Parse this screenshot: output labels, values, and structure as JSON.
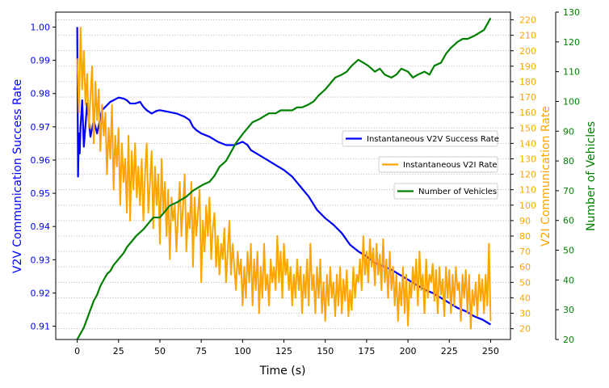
{
  "chart_data": {
    "type": "line",
    "xlabel": "Time (s)",
    "ylabel_left": "V2V Communication Success Rate",
    "ylabel_right1": "V2I Communication Rate",
    "ylabel_right2": "Number of Vehicles",
    "xlim": [
      -13,
      262
    ],
    "x_ticks": [
      0,
      25,
      50,
      75,
      100,
      125,
      150,
      175,
      200,
      225,
      250
    ],
    "y_left": {
      "range": [
        0.906,
        1.0045
      ],
      "ticks": [
        0.91,
        0.92,
        0.93,
        0.94,
        0.95,
        0.96,
        0.97,
        0.98,
        0.99,
        1.0
      ],
      "color": "#0000ff"
    },
    "y_right1": {
      "range": [
        13,
        225
      ],
      "ticks": [
        20,
        30,
        40,
        50,
        60,
        70,
        80,
        90,
        100,
        110,
        120,
        130,
        140,
        150,
        160,
        170,
        180,
        190,
        200,
        210,
        220
      ],
      "color": "#ffa500"
    },
    "y_right2": {
      "range": [
        20,
        130
      ],
      "ticks": [
        20,
        30,
        40,
        50,
        60,
        70,
        80,
        90,
        100,
        110,
        120,
        130
      ],
      "color": "#008000"
    },
    "grid": "horizontal dotted",
    "series": [
      {
        "name": "Instantaneous V2V Success Rate",
        "axis": "left",
        "color": "#0000ff",
        "x": [
          0,
          0.5,
          1,
          1.5,
          2,
          3,
          4,
          6,
          8,
          10,
          12,
          15,
          18,
          20,
          22,
          25,
          28,
          30,
          32,
          35,
          38,
          40,
          42,
          45,
          48,
          50,
          55,
          60,
          65,
          68,
          70,
          72,
          75,
          80,
          85,
          90,
          95,
          100,
          103,
          105,
          110,
          115,
          120,
          125,
          130,
          135,
          140,
          145,
          150,
          155,
          160,
          165,
          170,
          175,
          180,
          185,
          190,
          195,
          200,
          205,
          210,
          215,
          220,
          225,
          230,
          235,
          240,
          245,
          250
        ],
        "values": [
          1.0,
          0.955,
          0.968,
          0.962,
          0.97,
          0.978,
          0.964,
          0.977,
          0.967,
          0.972,
          0.968,
          0.975,
          0.9765,
          0.9775,
          0.978,
          0.9788,
          0.9785,
          0.978,
          0.977,
          0.977,
          0.9775,
          0.976,
          0.975,
          0.974,
          0.9748,
          0.975,
          0.9745,
          0.974,
          0.973,
          0.972,
          0.97,
          0.969,
          0.968,
          0.967,
          0.9655,
          0.9645,
          0.9645,
          0.9655,
          0.9645,
          0.963,
          0.9615,
          0.96,
          0.9585,
          0.957,
          0.955,
          0.952,
          0.949,
          0.945,
          0.9425,
          0.9405,
          0.938,
          0.9345,
          0.9325,
          0.931,
          0.929,
          0.928,
          0.927,
          0.9255,
          0.924,
          0.9225,
          0.921,
          0.92,
          0.9185,
          0.917,
          0.9155,
          0.9145,
          0.913,
          0.912,
          0.9105
        ]
      },
      {
        "name": "Instantaneous V2I Rate",
        "axis": "right1",
        "color": "#ffa500",
        "x": [
          0,
          1,
          2,
          3,
          4,
          5,
          6,
          7,
          8,
          9,
          10,
          11,
          12,
          13,
          14,
          15,
          16,
          17,
          18,
          19,
          20,
          21,
          22,
          23,
          24,
          25,
          26,
          27,
          28,
          29,
          30,
          31,
          32,
          33,
          34,
          35,
          36,
          37,
          38,
          39,
          40,
          41,
          42,
          43,
          44,
          45,
          46,
          47,
          48,
          49,
          50,
          51,
          52,
          53,
          54,
          55,
          56,
          57,
          58,
          59,
          60,
          61,
          62,
          63,
          64,
          65,
          66,
          67,
          68,
          69,
          70,
          71,
          72,
          73,
          74,
          75,
          76,
          77,
          78,
          79,
          80,
          81,
          82,
          83,
          84,
          85,
          86,
          87,
          88,
          89,
          90,
          91,
          92,
          93,
          94,
          95,
          96,
          97,
          98,
          99,
          100,
          101,
          102,
          103,
          104,
          105,
          106,
          107,
          108,
          109,
          110,
          111,
          112,
          113,
          114,
          115,
          116,
          117,
          118,
          119,
          120,
          121,
          122,
          123,
          124,
          125,
          126,
          127,
          128,
          129,
          130,
          131,
          132,
          133,
          134,
          135,
          136,
          137,
          138,
          139,
          140,
          141,
          142,
          143,
          144,
          145,
          146,
          147,
          148,
          149,
          150,
          151,
          152,
          153,
          154,
          155,
          156,
          157,
          158,
          159,
          160,
          161,
          162,
          163,
          164,
          165,
          166,
          167,
          168,
          169,
          170,
          171,
          172,
          173,
          174,
          175,
          176,
          177,
          178,
          179,
          180,
          181,
          182,
          183,
          184,
          185,
          186,
          187,
          188,
          189,
          190,
          191,
          192,
          193,
          194,
          195,
          196,
          197,
          198,
          199,
          200,
          201,
          202,
          203,
          204,
          205,
          206,
          207,
          208,
          209,
          210,
          211,
          212,
          213,
          214,
          215,
          216,
          217,
          218,
          219,
          220,
          221,
          222,
          223,
          224,
          225,
          226,
          227,
          228,
          229,
          230,
          231,
          232,
          233,
          234,
          235,
          236,
          237,
          238,
          239,
          240,
          241,
          242,
          243,
          244,
          245,
          246,
          247,
          248,
          249,
          250
        ],
        "values": [
          195,
          160,
          215,
          175,
          200,
          165,
          185,
          150,
          170,
          190,
          140,
          180,
          155,
          175,
          135,
          165,
          145,
          160,
          120,
          150,
          130,
          165,
          110,
          145,
          125,
          150,
          100,
          140,
          115,
          130,
          95,
          145,
          90,
          135,
          110,
          140,
          105,
          125,
          100,
          130,
          90,
          120,
          140,
          95,
          115,
          135,
          85,
          125,
          100,
          120,
          75,
          130,
          95,
          115,
          80,
          110,
          65,
          105,
          90,
          100,
          70,
          95,
          115,
          80,
          100,
          120,
          70,
          95,
          85,
          115,
          60,
          105,
          80,
          95,
          110,
          50,
          90,
          70,
          100,
          80,
          105,
          65,
          85,
          95,
          60,
          80,
          55,
          75,
          65,
          85,
          50,
          70,
          90,
          55,
          75,
          60,
          45,
          70,
          55,
          65,
          35,
          60,
          40,
          70,
          50,
          75,
          35,
          65,
          45,
          70,
          30,
          60,
          40,
          75,
          45,
          55,
          35,
          65,
          50,
          60,
          45,
          80,
          50,
          70,
          40,
          75,
          55,
          65,
          45,
          60,
          35,
          55,
          40,
          65,
          45,
          60,
          30,
          55,
          40,
          65,
          35,
          75,
          45,
          55,
          30,
          60,
          40,
          65,
          30,
          50,
          25,
          55,
          35,
          60,
          40,
          50,
          28,
          55,
          35,
          60,
          30,
          52,
          38,
          58,
          28,
          45,
          32,
          60,
          40,
          55,
          50,
          65,
          45,
          80,
          55,
          70,
          50,
          78,
          60,
          72,
          48,
          75,
          55,
          68,
          45,
          78,
          50,
          65,
          40,
          70,
          45,
          60,
          35,
          55,
          25,
          50,
          35,
          60,
          30,
          55,
          22,
          50,
          40,
          60,
          45,
          65,
          35,
          70,
          45,
          55,
          30,
          65,
          40,
          55,
          50,
          62,
          38,
          58,
          30,
          60,
          42,
          52,
          28,
          60,
          40,
          58,
          30,
          55,
          35,
          60,
          45,
          50,
          25,
          55,
          40,
          58,
          30,
          55,
          20,
          45,
          35,
          50,
          28,
          55,
          38,
          52,
          30,
          55,
          35,
          75,
          25
        ]
      },
      {
        "name": "Number of Vehicles",
        "axis": "right2",
        "color": "#008000",
        "x": [
          0,
          2,
          4,
          6,
          8,
          10,
          12,
          14,
          16,
          18,
          20,
          22,
          25,
          28,
          30,
          33,
          36,
          40,
          43,
          46,
          50,
          53,
          56,
          60,
          63,
          66,
          70,
          73,
          76,
          80,
          83,
          86,
          90,
          93,
          96,
          100,
          103,
          106,
          110,
          113,
          116,
          120,
          123,
          126,
          130,
          133,
          136,
          140,
          143,
          146,
          150,
          153,
          156,
          160,
          163,
          166,
          170,
          173,
          176,
          180,
          183,
          186,
          190,
          193,
          196,
          200,
          203,
          206,
          210,
          213,
          216,
          220,
          223,
          226,
          230,
          233,
          236,
          240,
          243,
          246,
          250
        ],
        "values": [
          20,
          22,
          24,
          27,
          30,
          33,
          35,
          38,
          40,
          42,
          43,
          45,
          47,
          49,
          51,
          53,
          55,
          57,
          59,
          61,
          61,
          63,
          65,
          66,
          67,
          68,
          70,
          71,
          72,
          73,
          75,
          78,
          80,
          83,
          86,
          89,
          91,
          93,
          94,
          95,
          96,
          96,
          97,
          97,
          97,
          98,
          98,
          99,
          100,
          102,
          104,
          106,
          108,
          109,
          110,
          112,
          114,
          113,
          112,
          110,
          111,
          109,
          108,
          109,
          111,
          110,
          108,
          109,
          110,
          109,
          112,
          113,
          116,
          118,
          120,
          121,
          121,
          122,
          123,
          124,
          128
        ]
      }
    ],
    "legend": {
      "placement": "center-right",
      "entries": [
        "Instantaneous V2V Success Rate",
        "Instantaneous V2I Rate",
        "Number of Vehicles"
      ]
    }
  }
}
